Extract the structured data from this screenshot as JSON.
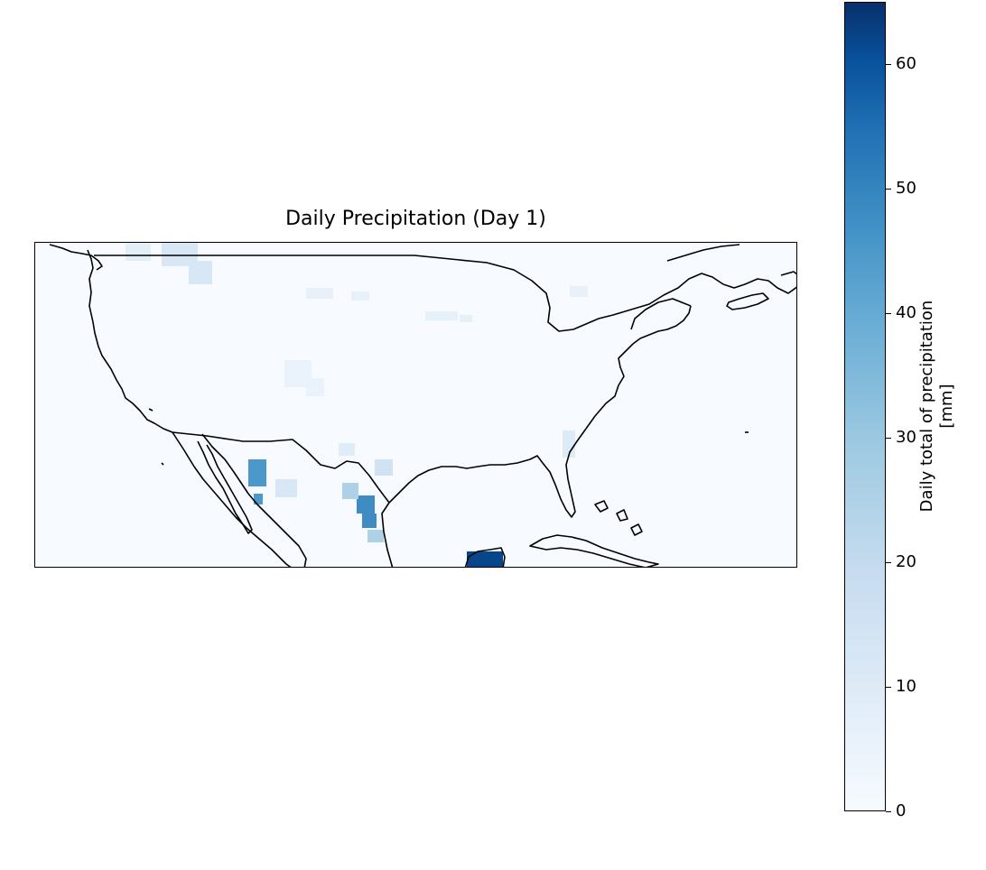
{
  "title": "Daily Precipitation (Day 1)",
  "colorbar": {
    "label_line1": "Daily total of precipitation",
    "label_line2": "[mm]",
    "range": [
      0,
      65
    ],
    "ticks": [
      "0",
      "10",
      "20",
      "30",
      "40",
      "50",
      "60"
    ],
    "colormap": "Blues",
    "color_low": "#f7fbff",
    "color_high": "#08306b"
  },
  "map": {
    "region": "Contiguous United States, Mexico, Gulf of Mexico and Caribbean",
    "coastlines": true,
    "border_color": "#000000",
    "precipitation_cells": [
      {
        "place": "Vancouver Island / Washington coast",
        "value_mm": 8
      },
      {
        "place": "Southern British Columbia",
        "value_mm": 12
      },
      {
        "place": "Northern Rockies",
        "value_mm": 6
      },
      {
        "place": "Central Rockies",
        "value_mm": 5
      },
      {
        "place": "Upper Midwest",
        "value_mm": 7
      },
      {
        "place": "Southern Ontario",
        "value_mm": 6
      },
      {
        "place": "New Mexico",
        "value_mm": 9
      },
      {
        "place": "Sonora, Mexico",
        "value_mm": 45
      },
      {
        "place": "Chihuahua, Mexico",
        "value_mm": 12
      },
      {
        "place": "Nuevo León, Mexico",
        "value_mm": 48
      },
      {
        "place": "Tamaulipas, Mexico",
        "value_mm": 25
      },
      {
        "place": "South Texas coast",
        "value_mm": 15
      },
      {
        "place": "Florida",
        "value_mm": 10
      },
      {
        "place": "Yucatán Peninsula",
        "value_mm": 62
      }
    ]
  }
}
